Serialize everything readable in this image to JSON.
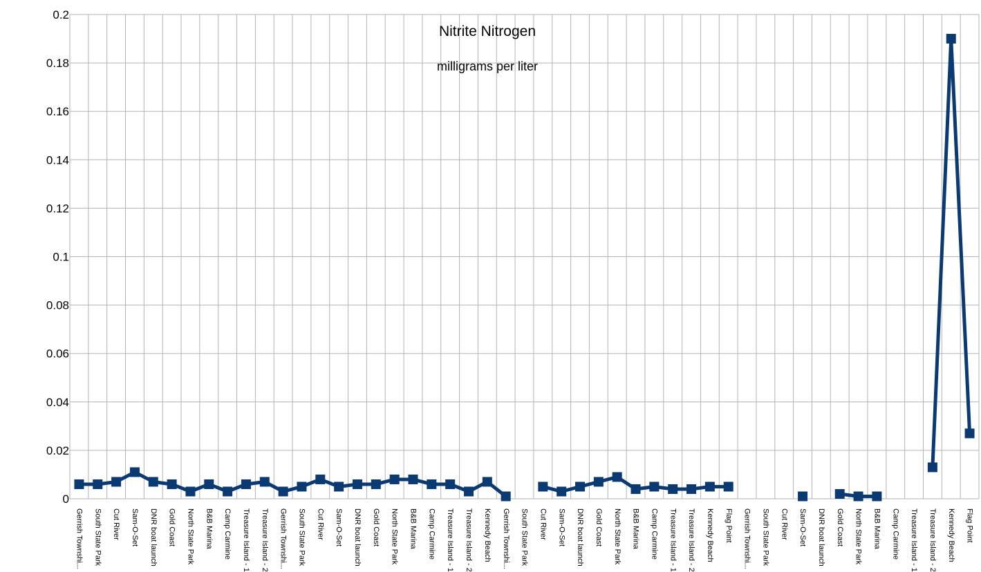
{
  "chart_data": {
    "type": "line",
    "title": "Nitrite Nitrogen",
    "subtitle": "milligrams per liter",
    "xlabel": "",
    "ylabel": "",
    "ylim": [
      0,
      0.2
    ],
    "yticks": [
      "0",
      "0.02",
      "0.04",
      "0.06",
      "0.08",
      "0.1",
      "0.12",
      "0.14",
      "0.16",
      "0.18",
      "0.2"
    ],
    "grid": true,
    "legend": "none",
    "line_color": "#0b3a73",
    "grid_color": "#b3b3b3",
    "categories": [
      "Gerrish Townshi...",
      "South State Park",
      "Cut River",
      "Sam-O-Set",
      "DNR boat launch",
      "Gold Coast",
      "North State Park",
      "B&B Marina",
      "Camp Carmine",
      "Treasure Island - 1",
      "Treasure Island - 2",
      "Gerrish Townshi...",
      "South State Park",
      "Cut River",
      "Sam-O-Set",
      "DNR boat launch",
      "Gold Coast",
      "North State Park",
      "B&B Marina",
      "Camp Carmine",
      "Treasure Island - 1",
      "Treasure Island - 2",
      "Kennedy Beach",
      "Gerrish Townshi...",
      "South State Park",
      "Cut River",
      "Sam-O-Set",
      "DNR boat launch",
      "Gold Coast",
      "North State Park",
      "B&B Marina",
      "Camp Carmine",
      "Treasure Island - 1",
      "Treasure Island - 2",
      "Kennedy Beach",
      "Flag Point",
      "Gerrish Townshi...",
      "South State Park",
      "Cut River",
      "Sam-O-Set",
      "DNR boat launch",
      "Gold Coast",
      "North State Park",
      "B&B Marina",
      "Camp Carmine",
      "Treasure Island - 1",
      "Treasure Island - 2",
      "Kennedy Beach",
      "Flag Point"
    ],
    "series": [
      {
        "values": [
          0.006,
          0.006,
          0.007,
          0.011,
          0.007,
          0.006,
          0.003,
          0.006,
          0.003,
          0.006,
          0.007,
          0.003,
          0.005,
          0.008,
          0.005,
          0.006,
          0.006,
          0.008,
          0.008,
          0.006,
          0.006,
          0.003,
          0.007,
          0.001,
          null,
          0.005,
          0.003,
          0.005,
          0.007,
          0.009,
          0.004,
          0.005,
          0.004,
          0.004,
          0.005,
          0.005,
          null,
          null,
          null,
          0.001,
          null,
          0.002,
          0.001,
          0.001,
          null,
          null,
          0.013,
          0.19,
          0.027
        ]
      }
    ]
  }
}
